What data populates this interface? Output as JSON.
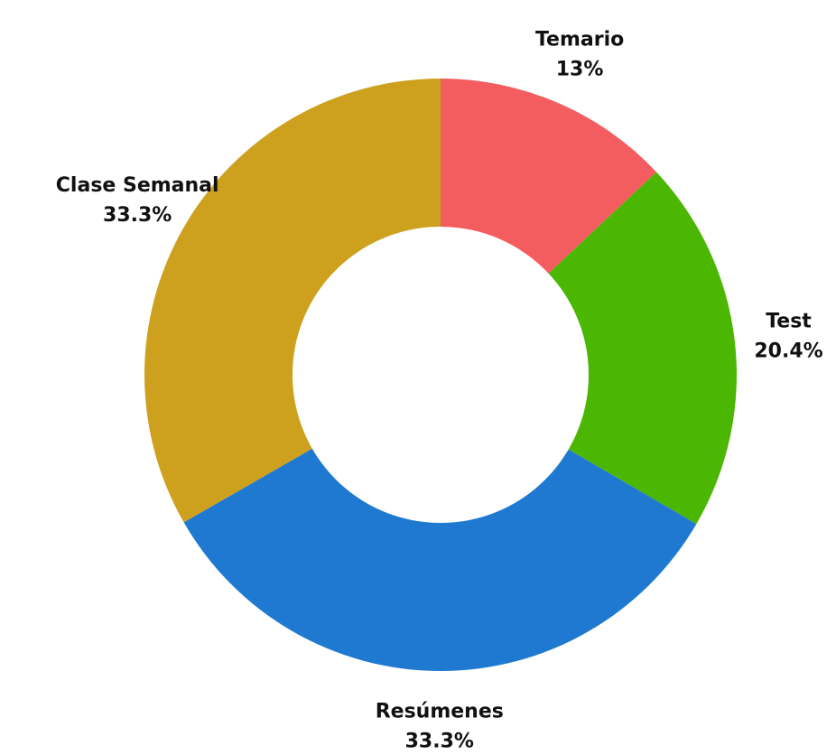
{
  "chart_data": {
    "type": "pie",
    "variant": "donut",
    "title": "",
    "slices": [
      {
        "label": "Temario",
        "value": 13,
        "value_label": "13%",
        "color": "#F45D5F"
      },
      {
        "label": "Test",
        "value": 20.4,
        "value_label": "20.4%",
        "color": "#4CB703"
      },
      {
        "label": "Resúmenes",
        "value": 33.3,
        "value_label": "33.3%",
        "color": "#1F79D1"
      },
      {
        "label": "Clase Semanal",
        "value": 33.3,
        "value_label": "33.3%",
        "color": "#CDA11E"
      }
    ],
    "start": "top",
    "direction": "clockwise",
    "legend": "none"
  }
}
